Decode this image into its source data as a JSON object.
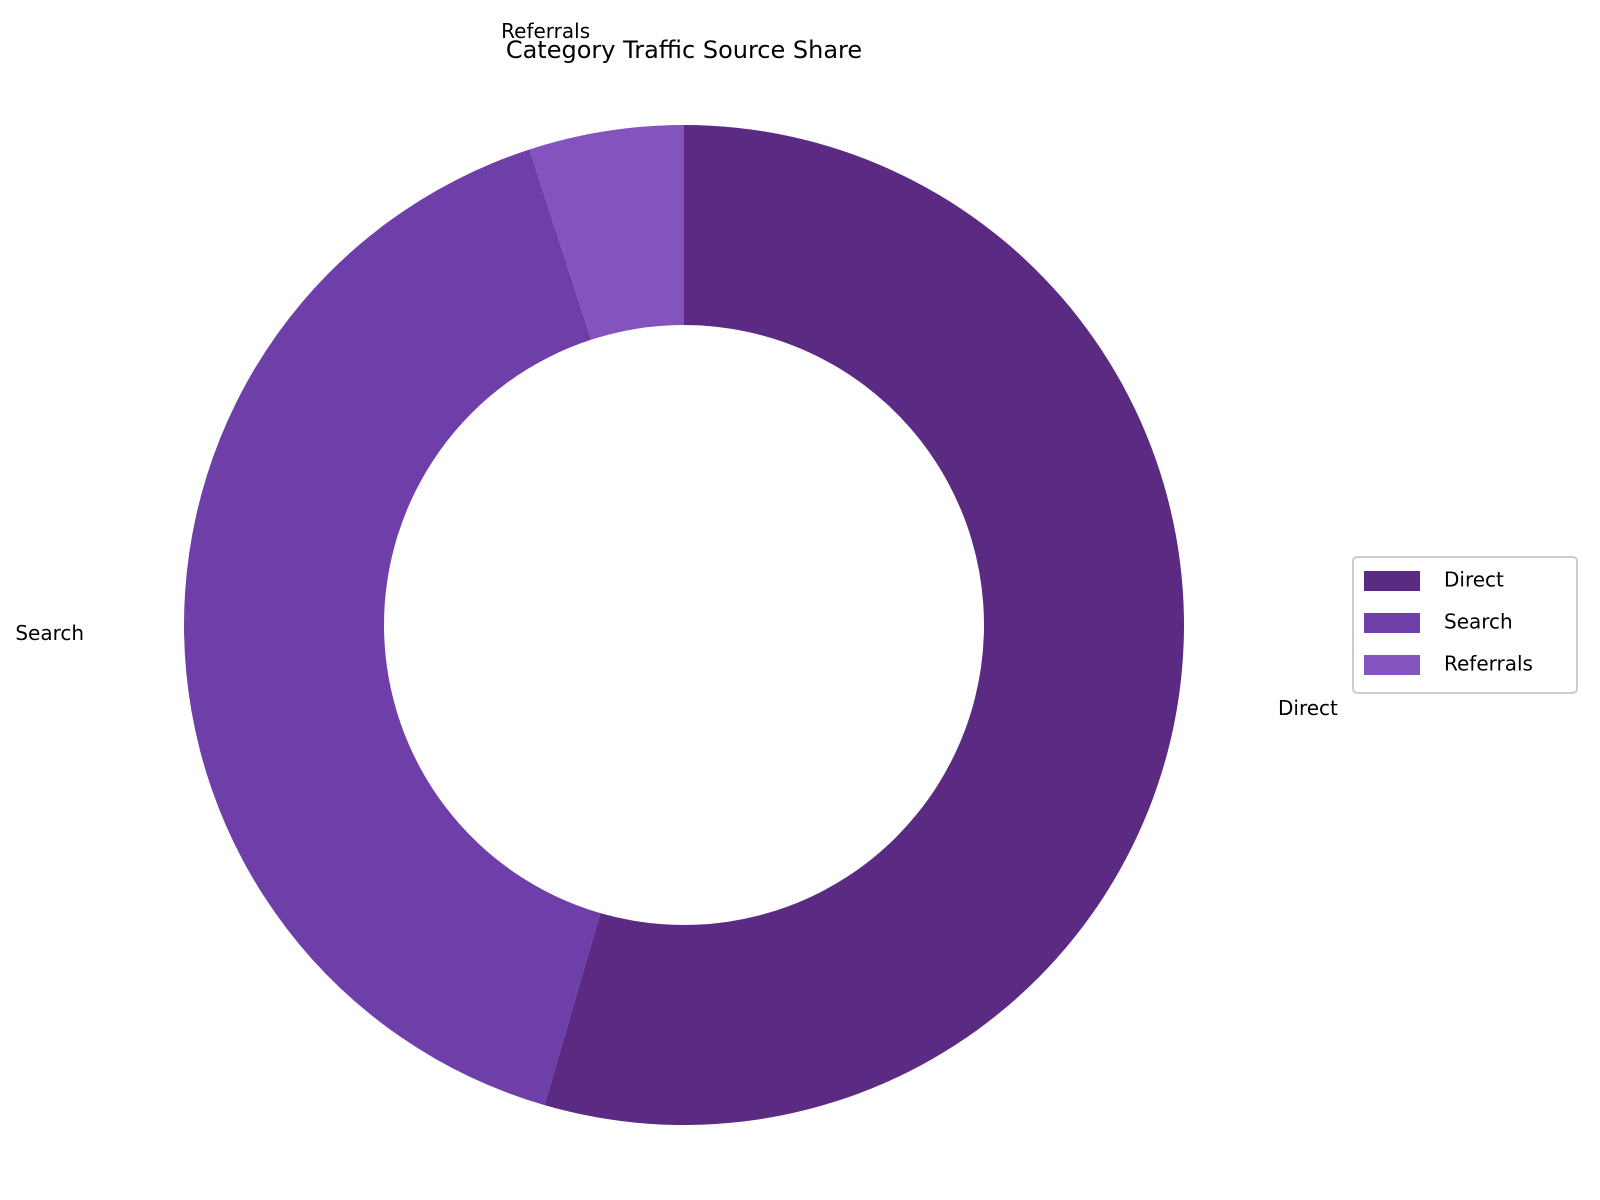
{
  "chart_data": {
    "type": "pie",
    "variant": "donut",
    "title": "Category Traffic Source Share",
    "slices": [
      {
        "name": "Direct",
        "value": 54.5,
        "color": "#5b2a82"
      },
      {
        "name": "Search",
        "value": 40.5,
        "color": "#6f3fa9"
      },
      {
        "name": "Referrals",
        "value": 5.0,
        "color": "#8353be"
      }
    ],
    "legend": {
      "position": "right",
      "entries": [
        "Direct",
        "Search",
        "Referrals"
      ]
    }
  }
}
